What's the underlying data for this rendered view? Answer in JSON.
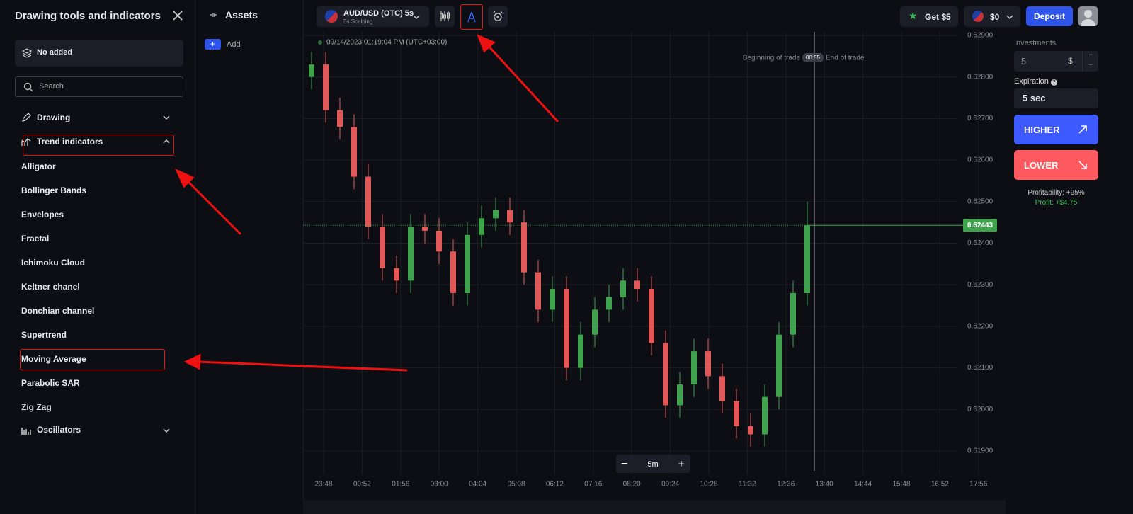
{
  "sidebar": {
    "title": "Drawing tools and indicators",
    "added": "No added",
    "search_placeholder": "Search",
    "sections": [
      {
        "label": "Drawing"
      },
      {
        "label": "Trend indicators",
        "items": [
          "Alligator",
          "Bollinger Bands",
          "Envelopes",
          "Fractal",
          "Ichimoku Cloud",
          "Keltner chanel",
          "Donchian channel",
          "Supertrend",
          "Moving Average",
          "Parabolic SAR",
          "Zig Zag"
        ]
      },
      {
        "label": "Oscillators"
      }
    ]
  },
  "assets": {
    "title": "Assets",
    "add": "Add"
  },
  "topbar": {
    "asset": "AUD/USD (OTC) 5s",
    "mode": "5s Scalping",
    "bonus": "Get $5",
    "balance": "$0",
    "deposit": "Deposit"
  },
  "chart": {
    "type": "candlestick",
    "timestamp": "09/14/2023 01:19:04 PM (UTC+03:00)",
    "trade_start": "Beginning of trade",
    "timer": "00:55",
    "trade_end": "End of trade",
    "current_price": 0.62443,
    "timeframe": "5m",
    "ylim": [
      0.619,
      0.629
    ],
    "yticks": [
      {
        "value": 0.619,
        "label": "0.61900"
      },
      {
        "value": 0.62,
        "label": "0.62000"
      },
      {
        "value": 0.621,
        "label": "0.62100"
      },
      {
        "value": 0.622,
        "label": "0.62200"
      },
      {
        "value": 0.623,
        "label": "0.62300"
      },
      {
        "value": 0.624,
        "label": "0.62400"
      },
      {
        "value": 0.625,
        "label": "0.62500"
      },
      {
        "value": 0.626,
        "label": "0.62600"
      },
      {
        "value": 0.627,
        "label": "0.62700"
      },
      {
        "value": 0.628,
        "label": "0.62800"
      },
      {
        "value": 0.629,
        "label": "0.62900"
      }
    ],
    "xticks": [
      "23:48",
      "00:52",
      "01:56",
      "03:00",
      "04:04",
      "05:08",
      "06:12",
      "07:16",
      "08:20",
      "09:24",
      "10:28",
      "11:32",
      "12:36",
      "13:40",
      "14:44",
      "15:48",
      "16:52",
      "17:56"
    ],
    "up_color": "#3fa34d",
    "down_color": "#e25858",
    "open": [
      0.628,
      0.6283,
      0.6272,
      0.6268,
      0.6256,
      0.6244,
      0.6234,
      0.6231,
      0.6244,
      0.6243,
      0.6238,
      0.6228,
      0.6242,
      0.6246,
      0.6248,
      0.6245,
      0.6233,
      0.6224,
      0.6229,
      0.621,
      0.6218,
      0.6224,
      0.6227,
      0.6231,
      0.6229,
      0.6216,
      0.6201,
      0.6206,
      0.6214,
      0.6208,
      0.6202,
      0.6196,
      0.6194,
      0.6203,
      0.6218,
      0.6228
    ],
    "high": [
      0.6286,
      0.6286,
      0.6275,
      0.6271,
      0.6259,
      0.6247,
      0.6237,
      0.6247,
      0.6247,
      0.6246,
      0.6241,
      0.6245,
      0.6249,
      0.6251,
      0.6251,
      0.6248,
      0.6236,
      0.6232,
      0.6232,
      0.6221,
      0.6227,
      0.623,
      0.6234,
      0.6234,
      0.6232,
      0.6219,
      0.6209,
      0.6217,
      0.6217,
      0.6211,
      0.6205,
      0.6199,
      0.6206,
      0.6221,
      0.6231,
      0.625
    ],
    "low": [
      0.6277,
      0.6269,
      0.6265,
      0.6253,
      0.6241,
      0.6231,
      0.6228,
      0.6228,
      0.624,
      0.6235,
      0.6225,
      0.6225,
      0.6239,
      0.6243,
      0.6242,
      0.623,
      0.6221,
      0.6221,
      0.6207,
      0.6207,
      0.6215,
      0.6221,
      0.6224,
      0.6226,
      0.6213,
      0.6198,
      0.6198,
      0.6203,
      0.6205,
      0.6199,
      0.6193,
      0.6191,
      0.6191,
      0.62,
      0.6215,
      0.6225
    ],
    "close": [
      0.6283,
      0.6272,
      0.6268,
      0.6256,
      0.6244,
      0.6234,
      0.6231,
      0.6244,
      0.6243,
      0.6238,
      0.6228,
      0.6242,
      0.6246,
      0.6248,
      0.6245,
      0.6233,
      0.6224,
      0.6229,
      0.621,
      0.6218,
      0.6224,
      0.6227,
      0.6231,
      0.6229,
      0.6216,
      0.6201,
      0.6206,
      0.6214,
      0.6208,
      0.6202,
      0.6196,
      0.6194,
      0.6203,
      0.6218,
      0.6228,
      0.62443
    ]
  },
  "trade": {
    "investments_label": "Investments",
    "amount": "5",
    "currency": "$",
    "expiration_label": "Expiration",
    "expiration": "5 sec",
    "higher": "HIGHER",
    "lower": "LOWER",
    "profitability": "Profitability: +95%",
    "profit": "Profit: +$4.75"
  }
}
